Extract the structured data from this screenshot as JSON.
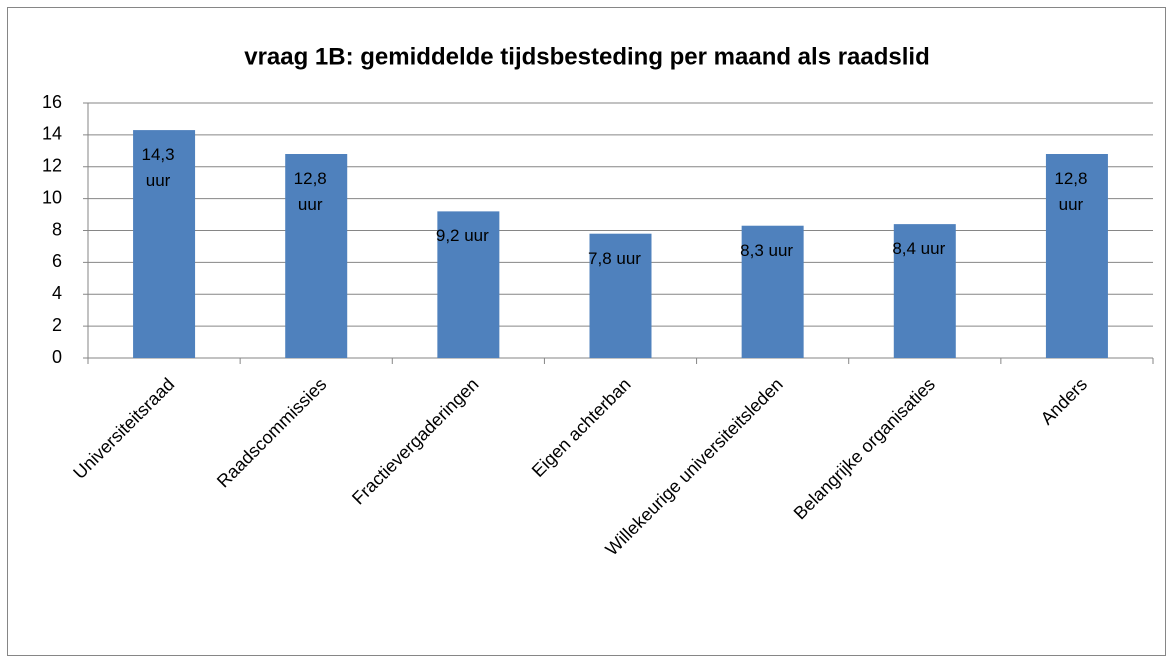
{
  "chart_data": {
    "type": "bar",
    "title": "vraag 1B: gemiddelde tijdsbesteding per maand als raadslid",
    "categories": [
      "Universiteitsraad",
      "Raadscommissies",
      "Fractievergaderingen",
      "Eigen achterban",
      "Willekeurige universiteitsleden",
      "Belangrijke organisaties",
      "Anders"
    ],
    "values": [
      14.3,
      12.8,
      9.2,
      7.8,
      8.3,
      8.4,
      12.8
    ],
    "value_labels": [
      "14,3 uur",
      "12,8 uur",
      "9,2 uur",
      "7,8 uur",
      "8,3 uur",
      "8,4 uur",
      "12,8 uur"
    ],
    "color": "#4f81bd",
    "ylim": [
      0,
      16
    ],
    "yticks": [
      0,
      2,
      4,
      6,
      8,
      10,
      12,
      14,
      16
    ],
    "grid": true
  }
}
